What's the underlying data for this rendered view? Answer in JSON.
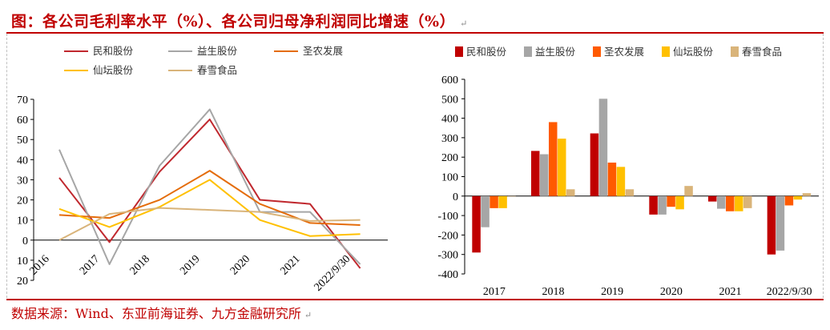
{
  "title": "图：各公司毛利率水平（%）、各公司归母净利润同比增速（%）",
  "title_mark": "↵",
  "source": "数据来源：Wind、东亚前海证券、九方金融研究所",
  "source_mark": "↵",
  "chart_data": [
    {
      "type": "line",
      "title": "各公司毛利率水平（%）",
      "categories": [
        "2016",
        "2017",
        "2018",
        "2019",
        "2020",
        "2021",
        "2022/9/30"
      ],
      "ylim": [
        -20,
        70
      ],
      "yticks": [
        -20,
        -10,
        0,
        10,
        20,
        30,
        40,
        50,
        60,
        70
      ],
      "ytick_labels": [
        "20",
        "10",
        "0",
        "10",
        "20",
        "30",
        "40",
        "50",
        "60",
        "70"
      ],
      "legend_position": "top",
      "series": [
        {
          "name": "民和股份",
          "color": "#c0282e",
          "values": [
            31,
            -1,
            34,
            60,
            20,
            18,
            -14
          ]
        },
        {
          "name": "益生股份",
          "color": "#a6a6a6",
          "values": [
            45,
            -12,
            37,
            65,
            14,
            14,
            -12
          ]
        },
        {
          "name": "圣农发展",
          "color": "#e46c0a",
          "values": [
            12.5,
            11,
            20,
            34.5,
            18,
            8.5,
            7.5
          ]
        },
        {
          "name": "仙坛股份",
          "color": "#ffc000",
          "values": [
            15.5,
            6.5,
            16.5,
            30,
            10,
            2,
            3
          ]
        },
        {
          "name": "春雪食品",
          "color": "#d9b47a",
          "values": [
            0,
            13,
            16,
            15,
            14,
            9.5,
            10
          ]
        }
      ]
    },
    {
      "type": "bar",
      "title": "各公司归母净利润同比增速（%）",
      "categories": [
        "2017",
        "2018",
        "2019",
        "2020",
        "2021",
        "2022/9/30"
      ],
      "ylim": [
        -400,
        600
      ],
      "yticks": [
        -400,
        -300,
        -200,
        -100,
        0,
        100,
        200,
        300,
        400,
        500,
        600
      ],
      "legend_position": "top",
      "series": [
        {
          "name": "民和股份",
          "color": "#c00000",
          "values": [
            -290,
            232,
            322,
            -95,
            -28,
            -300
          ]
        },
        {
          "name": "益生股份",
          "color": "#a6a6a6",
          "values": [
            -160,
            215,
            500,
            -95,
            -65,
            -280
          ]
        },
        {
          "name": "圣农发展",
          "color": "#ff5a00",
          "values": [
            -62,
            380,
            172,
            -55,
            -78,
            -48
          ]
        },
        {
          "name": "仙坛股份",
          "color": "#ffc000",
          "values": [
            -62,
            295,
            150,
            -68,
            -78,
            -18
          ]
        },
        {
          "name": "春雪食品",
          "color": "#d9b47a",
          "values": [
            0,
            35,
            35,
            52,
            -62,
            15
          ]
        }
      ]
    }
  ]
}
